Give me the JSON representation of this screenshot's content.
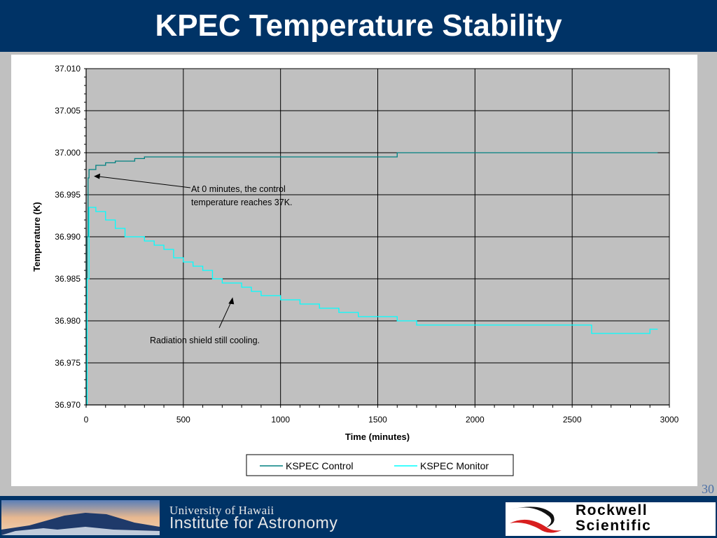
{
  "title": "KPEC Temperature Stability",
  "page_number": "30",
  "footer": {
    "university": "University of Hawaii",
    "institute": "Institute for Astronomy",
    "partner_line1": "Rockwell",
    "partner_line2": "Scientific"
  },
  "colors": {
    "title_bar": "#003366",
    "plot_background": "#c0c0c0",
    "control_series": "#008080",
    "monitor_series": "#00ffff"
  },
  "chart_data": {
    "type": "line",
    "title": "",
    "xlabel": "Time (minutes)",
    "ylabel": "Temperature (K)",
    "xlim": [
      0,
      3000
    ],
    "ylim": [
      36.97,
      37.01
    ],
    "x_ticks": [
      "0",
      "500",
      "1000",
      "1500",
      "2000",
      "2500",
      "3000"
    ],
    "y_ticks": [
      "36.970",
      "36.975",
      "36.980",
      "36.985",
      "36.990",
      "36.995",
      "37.000",
      "37.005",
      "37.010"
    ],
    "grid": true,
    "legend_position": "bottom",
    "series": [
      {
        "name": "KSPEC Control",
        "color": "#008080",
        "x": [
          0,
          5,
          10,
          15,
          25,
          50,
          100,
          150,
          200,
          250,
          300,
          400,
          600,
          800,
          1000,
          1200,
          1500,
          1600,
          2000,
          2500,
          2940
        ],
        "y": [
          36.97,
          36.99,
          36.997,
          36.998,
          36.998,
          36.9985,
          36.9988,
          36.999,
          36.999,
          36.9993,
          36.9995,
          36.9995,
          36.9995,
          36.9995,
          36.9995,
          36.9995,
          36.9995,
          37.0,
          37.0,
          37.0,
          37.0
        ]
      },
      {
        "name": "KSPEC Monitor",
        "color": "#00ffff",
        "x": [
          0,
          5,
          15,
          25,
          50,
          100,
          150,
          200,
          250,
          300,
          350,
          400,
          450,
          500,
          550,
          600,
          650,
          700,
          750,
          800,
          850,
          900,
          1000,
          1100,
          1200,
          1300,
          1400,
          1500,
          1600,
          1700,
          1800,
          1900,
          2000,
          2100,
          2200,
          2300,
          2400,
          2500,
          2600,
          2700,
          2800,
          2900,
          2940
        ],
        "y": [
          36.97,
          36.985,
          36.9935,
          36.9935,
          36.993,
          36.992,
          36.991,
          36.99,
          36.99,
          36.9895,
          36.989,
          36.9885,
          36.9875,
          36.987,
          36.9865,
          36.986,
          36.985,
          36.9845,
          36.9845,
          36.984,
          36.9835,
          36.983,
          36.9825,
          36.982,
          36.9815,
          36.981,
          36.9805,
          36.9805,
          36.98,
          36.9795,
          36.9795,
          36.9795,
          36.9795,
          36.9795,
          36.9795,
          36.9795,
          36.9795,
          36.9795,
          36.9785,
          36.9785,
          36.9785,
          36.979,
          36.979
        ]
      }
    ],
    "annotations": [
      {
        "text_line1": "At 0 minutes, the control",
        "text_line2": "temperature reaches 37K.",
        "arrow_x": 40,
        "arrow_y": 36.9972
      },
      {
        "text": "Radiation shield still cooling.",
        "arrow_x": 750,
        "arrow_y": 36.9828
      }
    ]
  }
}
